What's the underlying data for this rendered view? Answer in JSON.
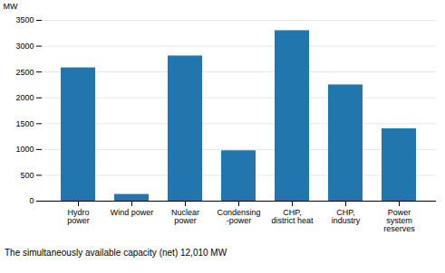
{
  "chart_data": {
    "type": "bar",
    "categories": [
      "Hydro\npower",
      "Wind power",
      "Nuclear\npower",
      "Condensing\n-power",
      "CHP,\ndistrict heat",
      "CHP,\nindustry",
      "Power\nsystem\nreserves"
    ],
    "values": [
      2580,
      130,
      2810,
      975,
      3300,
      2250,
      1400
    ],
    "color": "#2176ae",
    "ylabel": "MW",
    "ylim": [
      0,
      3500
    ],
    "yticks": [
      0,
      500,
      1000,
      1500,
      2000,
      2500,
      3000,
      3500
    ],
    "grid": true,
    "caption": "The  simultaneously  available  capacity (net)  12,010 MW"
  }
}
